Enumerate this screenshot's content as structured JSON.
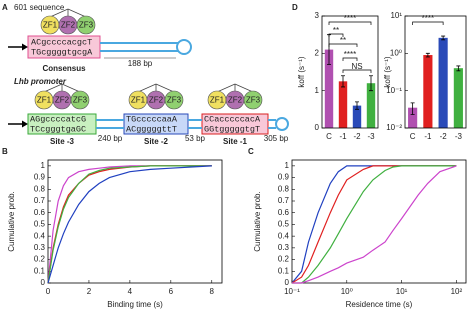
{
  "diagram": {
    "panel": "A",
    "title": "601 sequence",
    "zf_labels": [
      "ZF1",
      "ZF2",
      "ZF3"
    ],
    "consensus": {
      "top": "ACgccccacgcT",
      "bottom": "TGcggggtgcgA",
      "label": "Consensus",
      "spacer": "188 bp"
    },
    "promoter": "Lhb promoter",
    "sites": [
      {
        "top": "AGgccccatcG",
        "bottom": "TCcgggtgaGC",
        "label": "Site -3",
        "color": "#3aa83a",
        "fill": "#c8f0c0"
      },
      {
        "top": "TGcccccaaA",
        "bottom": "ACgggggttT",
        "label": "Site -2",
        "color": "#2a4ab8",
        "fill": "#c8d8f8"
      },
      {
        "top": "CCacccccacA",
        "bottom": "GGtgggggtgT",
        "label": "Site -1",
        "color": "#d82020",
        "fill": "#f8c8d8"
      }
    ],
    "spacers": [
      "240 bp",
      "53 bp",
      "305 bp"
    ]
  },
  "chart_data": [
    {
      "type": "line",
      "panel": "B",
      "xlabel": "Binding time (s)",
      "ylabel": "Cumulative prob.",
      "x": [
        0,
        0.25,
        0.5,
        0.75,
        1,
        1.5,
        2,
        2.5,
        3,
        4,
        5,
        6,
        7,
        8
      ],
      "xlim": [
        0,
        8.5
      ],
      "xticks": [
        0,
        2,
        4,
        6,
        8
      ],
      "ylim": [
        0,
        1.05
      ],
      "yticks": [
        0,
        0.1,
        0.2,
        0.3,
        0.4,
        0.5,
        0.6,
        0.7,
        0.8,
        0.9,
        1
      ],
      "series": [
        {
          "color": "#cc44cc",
          "values": [
            0,
            0.45,
            0.7,
            0.83,
            0.9,
            0.95,
            0.97,
            0.98,
            0.99,
            1,
            1,
            1,
            1,
            1
          ]
        },
        {
          "color": "#e02020",
          "values": [
            0,
            0.3,
            0.5,
            0.65,
            0.75,
            0.85,
            0.92,
            0.95,
            0.97,
            0.99,
            1,
            1,
            1,
            1
          ]
        },
        {
          "color": "#40b040",
          "values": [
            0,
            0.28,
            0.48,
            0.63,
            0.73,
            0.85,
            0.93,
            0.96,
            0.98,
            0.99,
            1,
            1,
            1,
            1
          ]
        },
        {
          "color": "#2040c0",
          "values": [
            0,
            0.15,
            0.3,
            0.42,
            0.52,
            0.67,
            0.78,
            0.85,
            0.9,
            0.95,
            0.97,
            0.98,
            0.99,
            1
          ]
        }
      ]
    },
    {
      "type": "line",
      "panel": "C",
      "xlabel": "Residence time (s)",
      "ylabel": "Cumulative prob.",
      "xlog": true,
      "x": [
        0.1,
        0.15,
        0.2,
        0.3,
        0.5,
        0.7,
        1,
        2,
        3,
        5,
        7,
        10,
        20,
        30,
        50,
        100
      ],
      "xlim": [
        0.1,
        150
      ],
      "xticks": [
        {
          "value": 0.1,
          "label": "10⁻¹"
        },
        {
          "value": 1,
          "label": "10⁰"
        },
        {
          "value": 10,
          "label": "10¹"
        },
        {
          "value": 100,
          "label": "10²"
        }
      ],
      "ylim": [
        0,
        1.05
      ],
      "yticks": [
        0,
        0.1,
        0.2,
        0.3,
        0.4,
        0.5,
        0.6,
        0.7,
        0.8,
        0.9,
        1
      ],
      "series": [
        {
          "color": "#2040c0",
          "values": [
            0,
            0.1,
            0.35,
            0.6,
            0.85,
            0.95,
            1,
            1,
            1,
            1,
            1,
            1,
            1,
            1,
            1,
            1
          ]
        },
        {
          "color": "#e02020",
          "values": [
            0,
            0.05,
            0.15,
            0.35,
            0.6,
            0.75,
            0.88,
            0.97,
            1,
            1,
            1,
            1,
            1,
            1,
            1,
            1
          ]
        },
        {
          "color": "#40b040",
          "values": [
            0,
            0,
            0.05,
            0.15,
            0.3,
            0.42,
            0.55,
            0.78,
            0.88,
            0.96,
            0.99,
            1,
            1,
            1,
            1,
            1
          ]
        },
        {
          "color": "#cc44cc",
          "values": [
            0,
            0,
            0.02,
            0.05,
            0.1,
            0.13,
            0.17,
            0.22,
            0.28,
            0.35,
            0.45,
            0.55,
            0.75,
            0.85,
            0.95,
            1
          ]
        }
      ]
    },
    {
      "type": "bar",
      "panel": "D",
      "ylabel": "koff (s⁻¹)",
      "categories": [
        "C",
        "-1",
        "-2",
        "-3"
      ],
      "values": [
        2.1,
        1.25,
        0.6,
        1.2
      ],
      "errors": [
        0.4,
        0.15,
        0.1,
        0.2
      ],
      "colors": [
        "#b050b0",
        "#e02020",
        "#2a4ab8",
        "#40b040"
      ],
      "ylim": [
        0,
        3
      ],
      "yticks": [
        0,
        1,
        2,
        3
      ],
      "annotations": [
        "****",
        "**",
        "**",
        "****",
        "NS"
      ]
    },
    {
      "type": "bar",
      "ylabel": "koff (s⁻¹)",
      "ylog": true,
      "categories": [
        "C",
        "-1",
        "-2",
        "-3"
      ],
      "values": [
        0.035,
        0.9,
        2.6,
        0.4
      ],
      "errors": [
        0.012,
        0.1,
        0.3,
        0.06
      ],
      "colors": [
        "#b050b0",
        "#e02020",
        "#2a4ab8",
        "#40b040"
      ],
      "ylim": [
        0.01,
        10
      ],
      "yticks": [
        {
          "value": 0.01,
          "label": "10⁻²"
        },
        {
          "value": 0.1,
          "label": "10⁻¹"
        },
        {
          "value": 1,
          "label": "10⁰"
        },
        {
          "value": 10,
          "label": "10¹"
        }
      ],
      "annotations": [
        "****"
      ]
    }
  ]
}
